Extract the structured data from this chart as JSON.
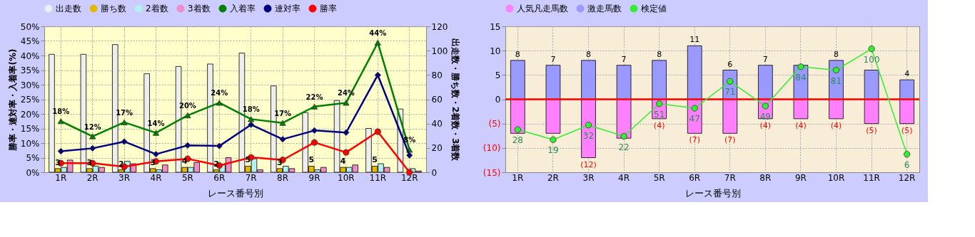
{
  "chart_data": [
    {
      "type": "bar",
      "categories": [
        "1R",
        "2R",
        "3R",
        "4R",
        "5R",
        "6R",
        "7R",
        "8R",
        "9R",
        "10R",
        "11R",
        "12R"
      ],
      "xlabel": "レース番号別",
      "ylabel": "勝率・連対率・入着率(%)",
      "y2label": "出走数・勝ち数・2着数・3着数",
      "ylim": [
        0,
        50
      ],
      "yticks": [
        {
          "value": 0,
          "label": "0%"
        },
        {
          "value": 5,
          "label": "5%"
        },
        {
          "value": 10,
          "label": "10%"
        },
        {
          "value": 15,
          "label": "15%"
        },
        {
          "value": 20,
          "label": "20%"
        },
        {
          "value": 25,
          "label": "25%"
        },
        {
          "value": 30,
          "label": "30%"
        },
        {
          "value": 35,
          "label": "35%"
        },
        {
          "value": 40,
          "label": "40%"
        },
        {
          "value": 45,
          "label": "45%"
        },
        {
          "value": 50,
          "label": "50%"
        }
      ],
      "y2lim": [
        0,
        120
      ],
      "y2ticks": [
        0,
        20,
        40,
        60,
        80,
        100,
        120
      ],
      "grid": true,
      "legend": "top",
      "series": [
        {
          "name": "出走数",
          "color": "#eeeeee",
          "axis": "y2",
          "values": [
            97,
            97,
            105,
            81,
            87,
            89,
            98,
            71,
            49,
            59,
            36,
            52
          ]
        },
        {
          "name": "勝ち数",
          "color": "#e6b800",
          "axis": "y2",
          "values": [
            3,
            3,
            2,
            3,
            4,
            2,
            5,
            3,
            5,
            4,
            5,
            0
          ],
          "value_labels": [
            "3",
            "3",
            "2",
            "3",
            "4",
            "2",
            "5",
            "3",
            "5",
            "4",
            "5",
            null
          ]
        },
        {
          "name": "2着数",
          "color": "#b3f0f0",
          "axis": "y2",
          "values": [
            4,
            5,
            9,
            2,
            4,
            6,
            11,
            5,
            2,
            4,
            7,
            3
          ]
        },
        {
          "name": "3着数",
          "color": "#f08cc8",
          "axis": "y2",
          "values": [
            10,
            4,
            7,
            6,
            8,
            12,
            2,
            3,
            4,
            6,
            4,
            1
          ]
        },
        {
          "name": "入着率",
          "type": "line",
          "color": "#008000",
          "marker": "triangle",
          "values": [
            17.5,
            12.3,
            17.1,
            13.5,
            19.5,
            23.8,
            18.2,
            16.9,
            22.5,
            23.8,
            44.4,
            7.7
          ],
          "value_labels": [
            "18%",
            "12%",
            "17%",
            "14%",
            "20%",
            "24%",
            "18%",
            "17%",
            "22%",
            "24%",
            "44%",
            "8%"
          ]
        },
        {
          "name": "連対率",
          "type": "line",
          "color": "#000080",
          "marker": "diamond",
          "values": [
            7.2,
            8.2,
            10.5,
            6.2,
            9.2,
            9.0,
            16.3,
            11.3,
            14.3,
            13.6,
            33.3,
            5.8
          ]
        },
        {
          "name": "勝率",
          "type": "line",
          "color": "#ff0000",
          "marker": "circle",
          "values": [
            3.1,
            3.1,
            1.9,
            3.7,
            4.6,
            2.3,
            5.1,
            4.2,
            10.2,
            6.8,
            13.9,
            0
          ]
        }
      ]
    },
    {
      "type": "bar",
      "stacked": true,
      "categories": [
        "1R",
        "2R",
        "3R",
        "4R",
        "5R",
        "6R",
        "7R",
        "8R",
        "9R",
        "10R",
        "11R",
        "12R"
      ],
      "xlabel": "レース番号別",
      "ylim": [
        -15,
        15
      ],
      "yticks": [
        {
          "value": -15,
          "label": "(15)"
        },
        {
          "value": -10,
          "label": "(10)"
        },
        {
          "value": -5,
          "label": "(5)"
        },
        0,
        5,
        10,
        15
      ],
      "y2lim": [
        -10,
        120
      ],
      "grid": true,
      "legend": "top",
      "ref_lines": [
        {
          "axis": "y",
          "value": 0,
          "color": "#ff0000"
        }
      ],
      "series": [
        {
          "name": "人気凡走馬数",
          "color": "#ff80ff",
          "values": [
            -7,
            -7,
            -12,
            -8,
            -4,
            -7,
            -7,
            -4,
            -4,
            -4,
            -5,
            -5
          ],
          "value_labels": [
            null,
            null,
            "(12)",
            null,
            "(4)",
            "(7)",
            "(7)",
            "(4)",
            "(4)",
            "(4)",
            "(5)",
            "(5)"
          ]
        },
        {
          "name": "激走馬数",
          "color": "#9999ff",
          "values": [
            8,
            7,
            8,
            7,
            8,
            11,
            6,
            7,
            7,
            8,
            6,
            4
          ],
          "value_labels": [
            "8",
            "7",
            "8",
            "7",
            "8",
            "11",
            "6",
            "7",
            null,
            "8",
            null,
            "4"
          ]
        },
        {
          "name": "検定値",
          "type": "line",
          "axis": "y2",
          "color": "#33ee33",
          "marker": "circle",
          "values": [
            28,
            19,
            32,
            22,
            51,
            47,
            71,
            49,
            84,
            81,
            100,
            6
          ],
          "value_labels": [
            "28",
            "19",
            "32",
            "22",
            "51",
            "47",
            "71",
            "49",
            "84",
            "81",
            "100",
            "6"
          ]
        }
      ]
    }
  ]
}
